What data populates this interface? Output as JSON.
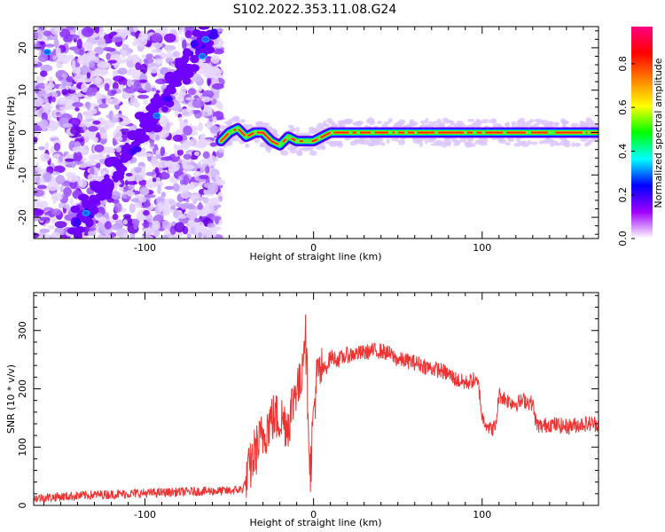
{
  "figure": {
    "title": "S102.2022.353.11.08.G24"
  },
  "chart_data": [
    {
      "type": "heatmap",
      "xlabel": "Height of straight line (km)",
      "ylabel": "Frequency (Hz)",
      "xlim": [
        -166,
        169
      ],
      "ylim": [
        -25,
        25
      ],
      "xticks": [
        -100,
        0,
        100
      ],
      "xtick_labels": [
        "-100",
        "0",
        "100"
      ],
      "yticks": [
        -20,
        -10,
        0,
        10,
        20
      ],
      "ytick_labels": [
        "-20",
        "-10",
        "0",
        "10",
        "20"
      ],
      "colorbar": {
        "label": "Normalized spectral amplitude",
        "range": [
          0,
          0.97
        ],
        "ticks": [
          0,
          0.2,
          0.4,
          0.6,
          0.8
        ],
        "tick_labels": [
          "0.0",
          "0.2",
          "0.4",
          "0.6",
          "0.8"
        ],
        "colors": [
          "#ffffff",
          "#a000ff",
          "#0000ff",
          "#00ffff",
          "#00ff00",
          "#ffff00",
          "#ff8000",
          "#ff0000",
          "#ff0080"
        ]
      },
      "ridge": {
        "x": [
          -55,
          -50,
          -45,
          -40,
          -35,
          -30,
          -25,
          -20,
          -15,
          -10,
          -5,
          0,
          5,
          10,
          20,
          40,
          60,
          80,
          100,
          120,
          140,
          168
        ],
        "y": [
          -2,
          0,
          1,
          -1,
          0,
          0,
          -2,
          -3,
          -1,
          -2,
          -2,
          -2,
          -1,
          0,
          0,
          0,
          0,
          0,
          0,
          0,
          0,
          0
        ]
      },
      "scatter_band": {
        "x_start": -166,
        "x_end": -55,
        "diagonal_from": [
          -140,
          -22
        ],
        "diagonal_to": [
          -60,
          25
        ]
      }
    },
    {
      "type": "line",
      "xlabel": "Height of straight line (km)",
      "ylabel": "SNR (10 * v/v)",
      "xlim": [
        -166,
        169
      ],
      "ylim": [
        0,
        365
      ],
      "xticks": [
        -100,
        0,
        100
      ],
      "xtick_labels": [
        "-100",
        "0",
        "100"
      ],
      "yticks": [
        0,
        100,
        200,
        300
      ],
      "ytick_labels": [
        "0",
        "100",
        "200",
        "300"
      ],
      "color": "#ee3333",
      "series": [
        {
          "x": [
            -166,
            -150,
            -130,
            -110,
            -90,
            -70,
            -50,
            -42,
            -38,
            -35,
            -30,
            -25,
            -20,
            -15,
            -10,
            -8,
            -5,
            -3,
            -2,
            0,
            2,
            5,
            8,
            10,
            15,
            20,
            25,
            30,
            35,
            40,
            45,
            50,
            55,
            60,
            65,
            70,
            75,
            80,
            85,
            90,
            95,
            98,
            100,
            103,
            105,
            108,
            110,
            115,
            120,
            125,
            130,
            132,
            135,
            140,
            150,
            160,
            169
          ],
          "y": [
            12,
            15,
            18,
            20,
            22,
            24,
            25,
            28,
            60,
            90,
            120,
            150,
            150,
            140,
            210,
            200,
            310,
            150,
            50,
            160,
            220,
            230,
            240,
            255,
            250,
            258,
            260,
            262,
            265,
            265,
            260,
            250,
            248,
            245,
            240,
            235,
            232,
            225,
            215,
            210,
            215,
            205,
            150,
            140,
            130,
            135,
            190,
            180,
            175,
            180,
            175,
            140,
            135,
            140,
            135,
            140,
            140
          ]
        }
      ]
    }
  ]
}
